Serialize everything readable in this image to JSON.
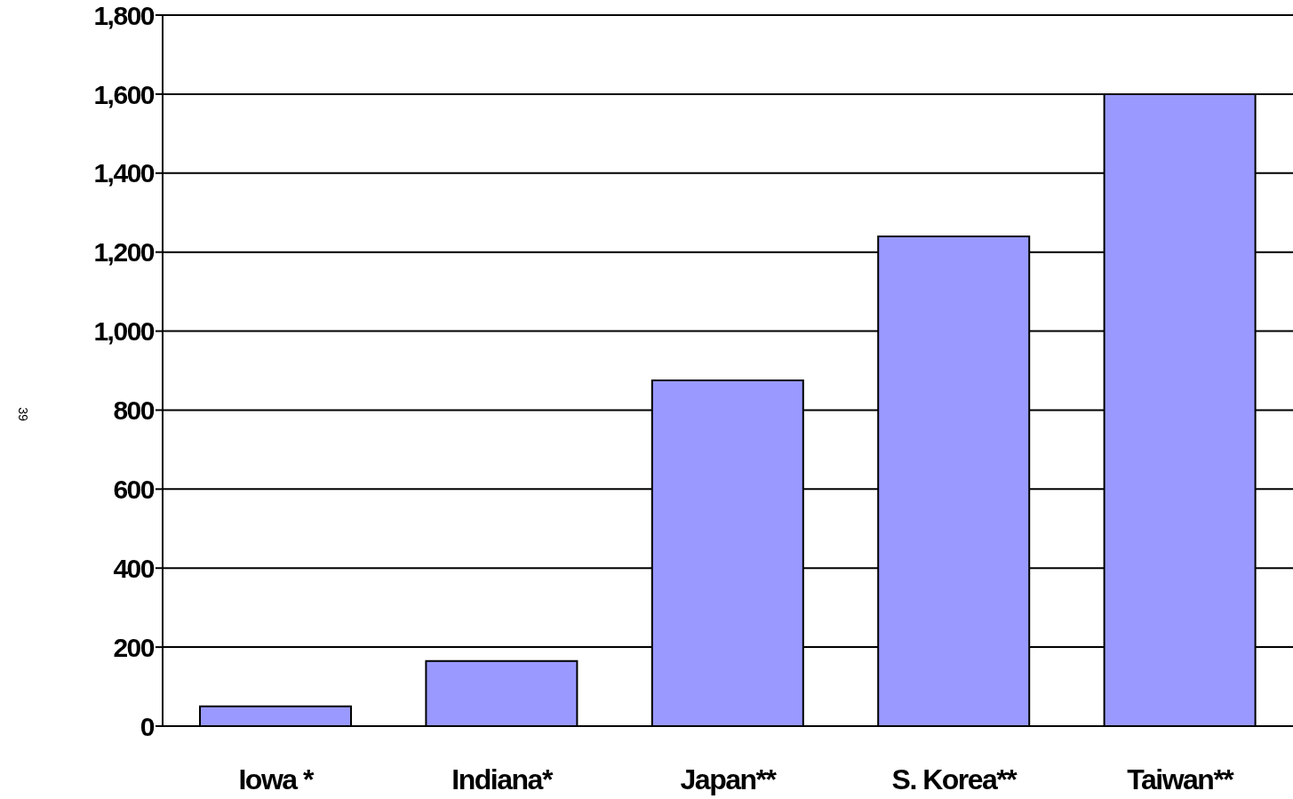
{
  "chart_data": {
    "type": "bar",
    "categories": [
      "Iowa *",
      "Indiana*",
      "Japan**",
      "S. Korea**",
      "Taiwan**"
    ],
    "values": [
      50,
      165,
      875,
      1240,
      1600
    ],
    "color": "#9999ff",
    "ylim": [
      0,
      1800
    ],
    "yticks": [
      0,
      200,
      400,
      600,
      800,
      {
        "value": 1000,
        "label": "1,000"
      },
      {
        "value": 1200,
        "label": "1,200"
      },
      {
        "value": 1400,
        "label": "1,400"
      },
      {
        "value": 1600,
        "label": "1,600"
      },
      {
        "value": 1800,
        "label": "1,800"
      }
    ],
    "grid": "y",
    "annotations": [
      "39"
    ]
  }
}
